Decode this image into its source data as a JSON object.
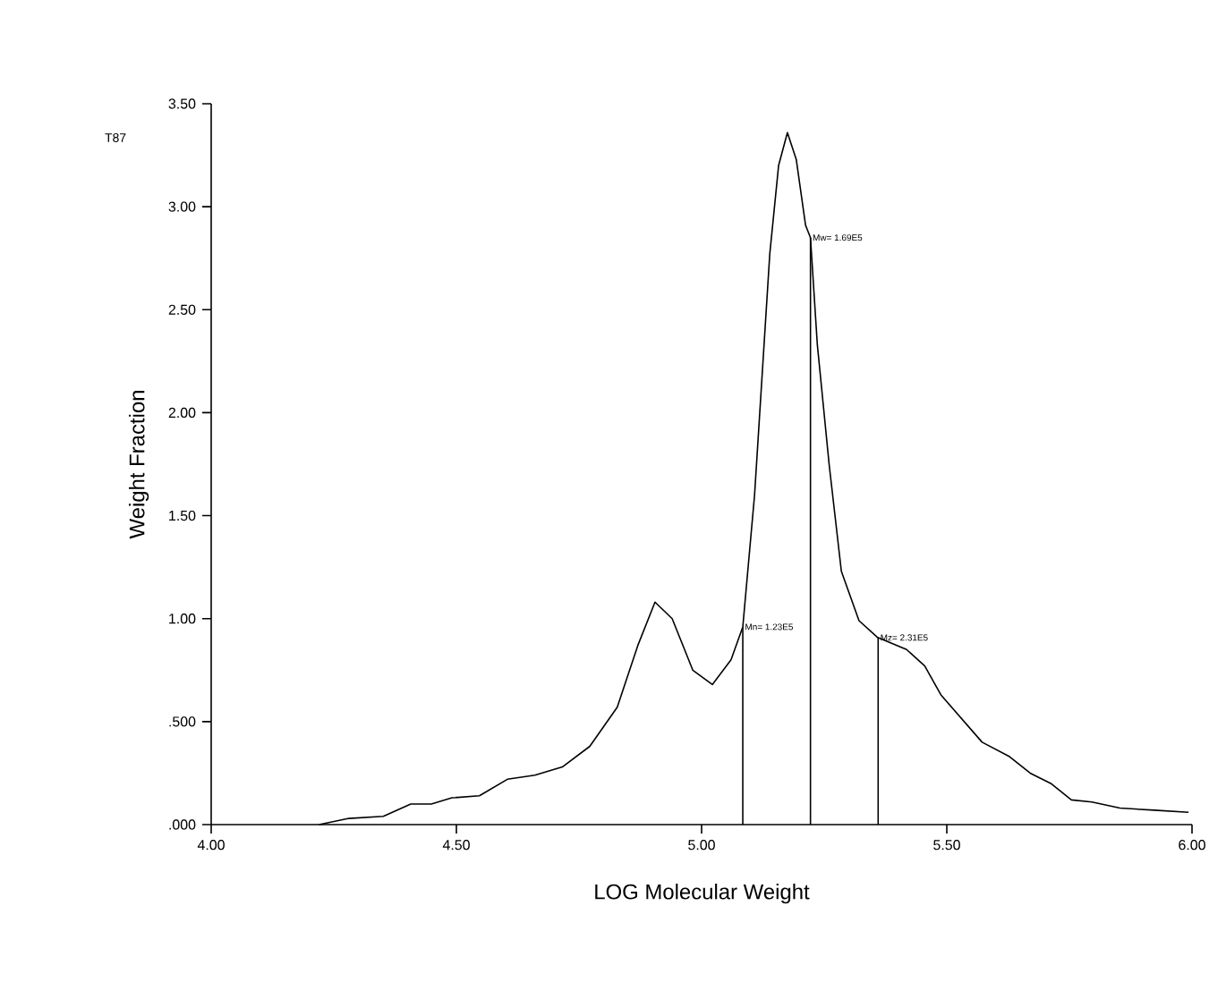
{
  "chart_data": {
    "type": "line",
    "xlabel": "LOG Molecular Weight",
    "ylabel": "Weight Fraction",
    "x": [
      4.22,
      4.281,
      4.351,
      4.407,
      4.449,
      4.491,
      4.547,
      4.604,
      4.66,
      4.716,
      4.772,
      4.828,
      4.87,
      4.905,
      4.94,
      4.982,
      5.022,
      5.06,
      5.084,
      5.108,
      5.139,
      5.157,
      5.175,
      5.193,
      5.212,
      5.222,
      5.236,
      5.26,
      5.285,
      5.321,
      5.358,
      5.418,
      5.455,
      5.488,
      5.572,
      5.628,
      5.67,
      5.712,
      5.754,
      5.796,
      5.853,
      5.923,
      5.993
    ],
    "values": [
      0.0,
      0.03,
      0.04,
      0.1,
      0.1,
      0.13,
      0.14,
      0.22,
      0.24,
      0.28,
      0.38,
      0.57,
      0.87,
      1.08,
      1.0,
      0.75,
      0.68,
      0.8,
      0.96,
      1.6,
      2.77,
      3.2,
      3.36,
      3.23,
      2.91,
      2.85,
      2.33,
      1.75,
      1.23,
      0.99,
      0.91,
      0.85,
      0.77,
      0.63,
      0.4,
      0.33,
      0.25,
      0.2,
      0.12,
      0.11,
      0.08,
      0.07,
      0.06
    ],
    "color": "#000000",
    "xlim": [
      4.0,
      6.0
    ],
    "ylim": [
      0.0,
      3.5
    ],
    "xticks": [
      {
        "value": 4.0,
        "label": "4.00"
      },
      {
        "value": 4.5,
        "label": "4.50"
      },
      {
        "value": 5.0,
        "label": "5.00"
      },
      {
        "value": 5.5,
        "label": "5.50"
      },
      {
        "value": 6.0,
        "label": "6.00"
      }
    ],
    "yticks": [
      {
        "value": 0.0,
        "label": ".000"
      },
      {
        "value": 0.5,
        "label": ".500"
      },
      {
        "value": 1.0,
        "label": "1.00"
      },
      {
        "value": 1.5,
        "label": "1.50"
      },
      {
        "value": 2.0,
        "label": "2.00"
      },
      {
        "value": 2.5,
        "label": "2.50"
      },
      {
        "value": 3.0,
        "label": "3.00"
      },
      {
        "value": 3.5,
        "label": "3.50"
      }
    ],
    "grid": false,
    "annotations": [
      "T87"
    ],
    "ref_lines": [
      {
        "axis": "x",
        "value": 5.084,
        "label": "Mn= 1.23E5"
      },
      {
        "axis": "x",
        "value": 5.222,
        "label": "Mw= 1.69E5"
      },
      {
        "axis": "x",
        "value": 5.36,
        "label": "Mz= 2.31E5"
      }
    ]
  }
}
